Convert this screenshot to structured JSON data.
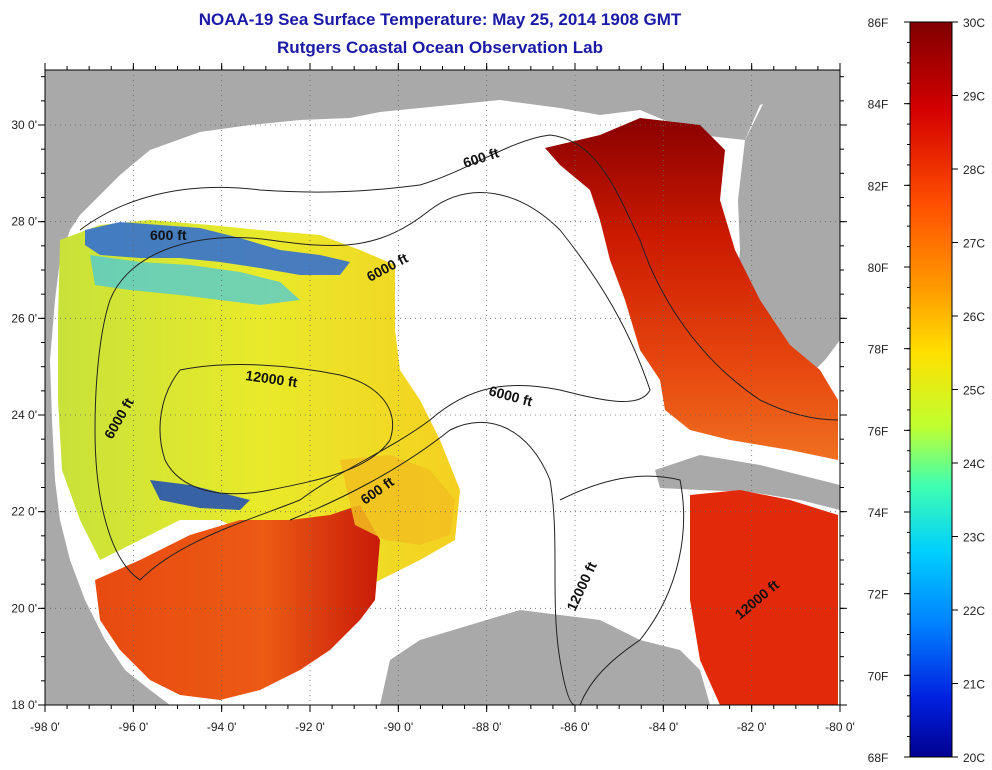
{
  "title_line1": "NOAA-19 Sea Surface Temperature:  May 25, 2014 1908 GMT",
  "title_line2": "Rutgers Coastal Ocean Observation Lab",
  "lon_ticks": [
    "-98 0'",
    "-96 0'",
    "-94 0'",
    "-92 0'",
    "-90 0'",
    "-88 0'",
    "-86 0'",
    "-84 0'",
    "-82 0'",
    "-80 0'"
  ],
  "lat_ticks": [
    "30 0'",
    "28 0'",
    "26 0'",
    "24 0'",
    "22 0'",
    "20 0'",
    "18 0'"
  ],
  "contour_labels": [
    "600 ft",
    "600 ft",
    "6000 ft",
    "6000 ft",
    "6000 ft",
    "12000 ft",
    "12000 ft",
    "12000 ft",
    "600 ft"
  ],
  "colorbar": {
    "fahrenheit": [
      "86F",
      "84F",
      "82F",
      "80F",
      "78F",
      "76F",
      "74F",
      "72F",
      "70F",
      "68F"
    ],
    "celsius": [
      "30C",
      "29C",
      "28C",
      "27C",
      "26C",
      "25C",
      "24C",
      "23C",
      "22C",
      "21C",
      "20C"
    ]
  },
  "colors": {
    "land": "#a9a9a9",
    "cloud_or_nodata": "#ffffff",
    "title": "#1a1aa6"
  }
}
